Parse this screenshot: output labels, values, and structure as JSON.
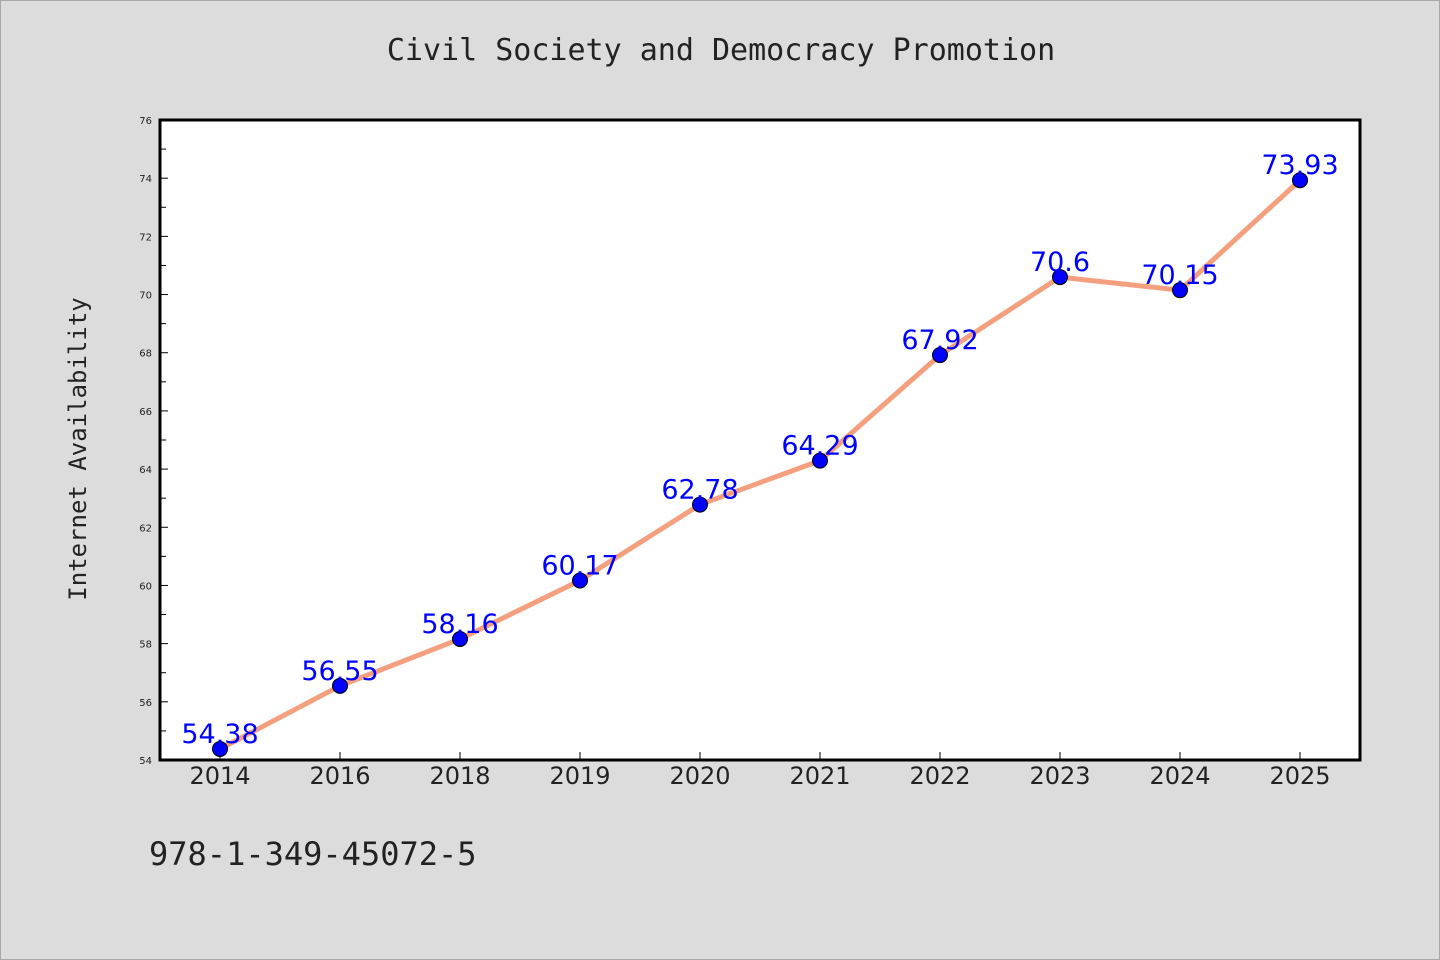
{
  "chart_data": {
    "type": "line",
    "title": "Civil Society and Democracy Promotion",
    "xlabel": "",
    "ylabel": "Internet Availability",
    "categories": [
      "2014",
      "2016",
      "2018",
      "2019",
      "2020",
      "2021",
      "2022",
      "2023",
      "2024",
      "2025"
    ],
    "series": [
      {
        "values": [
          54.38,
          56.55,
          58.16,
          60.17,
          62.78,
          64.29,
          67.92,
          70.6,
          70.15,
          73.93
        ],
        "labels": [
          "54.38",
          "56.55",
          "58.16",
          "60.17",
          "62.78",
          "64.29",
          "67.92",
          "70.6",
          "70.15",
          "73.93"
        ]
      }
    ],
    "ylim": [
      54,
      76
    ],
    "yticks": [
      "54",
      "56",
      "58",
      "60",
      "62",
      "64",
      "66",
      "68",
      "70",
      "72",
      "74",
      "76"
    ],
    "grid": false,
    "legend": "none",
    "line_color": "#f4a07e",
    "marker_color": "#0000ff",
    "label_color": "#0000ff",
    "background_color": "#dcdcdc",
    "plot_background": "#ffffff"
  },
  "footer": {
    "isbn": "978-1-349-45072-5"
  }
}
